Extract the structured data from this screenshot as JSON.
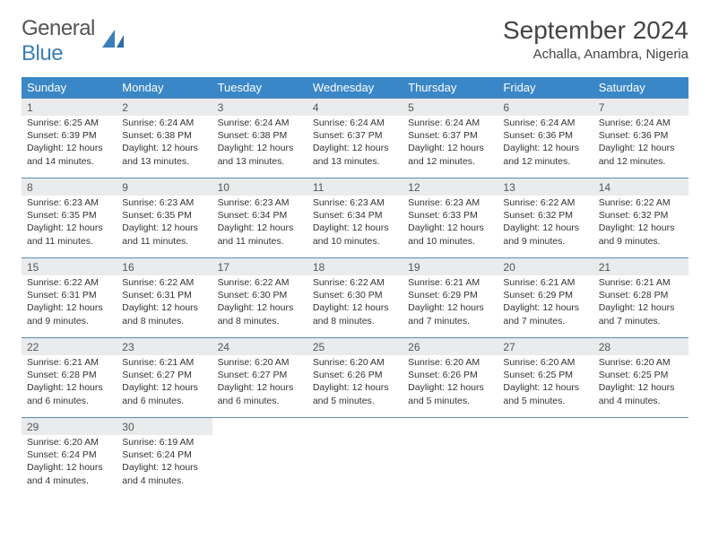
{
  "brand": {
    "name_part1": "General",
    "name_part2": "Blue"
  },
  "title": "September 2024",
  "location": "Achalla, Anambra, Nigeria",
  "colors": {
    "header_bg": "#3a87c7",
    "daynum_bg": "#e9ebec",
    "week_border": "#5a8fb8",
    "logo_blue": "#3a7fb8"
  },
  "fonts": {
    "title_size": 28,
    "location_size": 15,
    "weekday_size": 13,
    "daynum_size": 12,
    "body_size": 10.5
  },
  "weekdays": [
    "Sunday",
    "Monday",
    "Tuesday",
    "Wednesday",
    "Thursday",
    "Friday",
    "Saturday"
  ],
  "layout": {
    "columns": 7,
    "rows": 5,
    "first_weekday_index": 0,
    "days_in_month": 30
  },
  "days": [
    {
      "n": 1,
      "sunrise": "6:25 AM",
      "sunset": "6:39 PM",
      "daylight": "12 hours and 14 minutes."
    },
    {
      "n": 2,
      "sunrise": "6:24 AM",
      "sunset": "6:38 PM",
      "daylight": "12 hours and 13 minutes."
    },
    {
      "n": 3,
      "sunrise": "6:24 AM",
      "sunset": "6:38 PM",
      "daylight": "12 hours and 13 minutes."
    },
    {
      "n": 4,
      "sunrise": "6:24 AM",
      "sunset": "6:37 PM",
      "daylight": "12 hours and 13 minutes."
    },
    {
      "n": 5,
      "sunrise": "6:24 AM",
      "sunset": "6:37 PM",
      "daylight": "12 hours and 12 minutes."
    },
    {
      "n": 6,
      "sunrise": "6:24 AM",
      "sunset": "6:36 PM",
      "daylight": "12 hours and 12 minutes."
    },
    {
      "n": 7,
      "sunrise": "6:24 AM",
      "sunset": "6:36 PM",
      "daylight": "12 hours and 12 minutes."
    },
    {
      "n": 8,
      "sunrise": "6:23 AM",
      "sunset": "6:35 PM",
      "daylight": "12 hours and 11 minutes."
    },
    {
      "n": 9,
      "sunrise": "6:23 AM",
      "sunset": "6:35 PM",
      "daylight": "12 hours and 11 minutes."
    },
    {
      "n": 10,
      "sunrise": "6:23 AM",
      "sunset": "6:34 PM",
      "daylight": "12 hours and 11 minutes."
    },
    {
      "n": 11,
      "sunrise": "6:23 AM",
      "sunset": "6:34 PM",
      "daylight": "12 hours and 10 minutes."
    },
    {
      "n": 12,
      "sunrise": "6:23 AM",
      "sunset": "6:33 PM",
      "daylight": "12 hours and 10 minutes."
    },
    {
      "n": 13,
      "sunrise": "6:22 AM",
      "sunset": "6:32 PM",
      "daylight": "12 hours and 9 minutes."
    },
    {
      "n": 14,
      "sunrise": "6:22 AM",
      "sunset": "6:32 PM",
      "daylight": "12 hours and 9 minutes."
    },
    {
      "n": 15,
      "sunrise": "6:22 AM",
      "sunset": "6:31 PM",
      "daylight": "12 hours and 9 minutes."
    },
    {
      "n": 16,
      "sunrise": "6:22 AM",
      "sunset": "6:31 PM",
      "daylight": "12 hours and 8 minutes."
    },
    {
      "n": 17,
      "sunrise": "6:22 AM",
      "sunset": "6:30 PM",
      "daylight": "12 hours and 8 minutes."
    },
    {
      "n": 18,
      "sunrise": "6:22 AM",
      "sunset": "6:30 PM",
      "daylight": "12 hours and 8 minutes."
    },
    {
      "n": 19,
      "sunrise": "6:21 AM",
      "sunset": "6:29 PM",
      "daylight": "12 hours and 7 minutes."
    },
    {
      "n": 20,
      "sunrise": "6:21 AM",
      "sunset": "6:29 PM",
      "daylight": "12 hours and 7 minutes."
    },
    {
      "n": 21,
      "sunrise": "6:21 AM",
      "sunset": "6:28 PM",
      "daylight": "12 hours and 7 minutes."
    },
    {
      "n": 22,
      "sunrise": "6:21 AM",
      "sunset": "6:28 PM",
      "daylight": "12 hours and 6 minutes."
    },
    {
      "n": 23,
      "sunrise": "6:21 AM",
      "sunset": "6:27 PM",
      "daylight": "12 hours and 6 minutes."
    },
    {
      "n": 24,
      "sunrise": "6:20 AM",
      "sunset": "6:27 PM",
      "daylight": "12 hours and 6 minutes."
    },
    {
      "n": 25,
      "sunrise": "6:20 AM",
      "sunset": "6:26 PM",
      "daylight": "12 hours and 5 minutes."
    },
    {
      "n": 26,
      "sunrise": "6:20 AM",
      "sunset": "6:26 PM",
      "daylight": "12 hours and 5 minutes."
    },
    {
      "n": 27,
      "sunrise": "6:20 AM",
      "sunset": "6:25 PM",
      "daylight": "12 hours and 5 minutes."
    },
    {
      "n": 28,
      "sunrise": "6:20 AM",
      "sunset": "6:25 PM",
      "daylight": "12 hours and 4 minutes."
    },
    {
      "n": 29,
      "sunrise": "6:20 AM",
      "sunset": "6:24 PM",
      "daylight": "12 hours and 4 minutes."
    },
    {
      "n": 30,
      "sunrise": "6:19 AM",
      "sunset": "6:24 PM",
      "daylight": "12 hours and 4 minutes."
    }
  ],
  "labels": {
    "sunrise": "Sunrise:",
    "sunset": "Sunset:",
    "daylight": "Daylight:"
  }
}
